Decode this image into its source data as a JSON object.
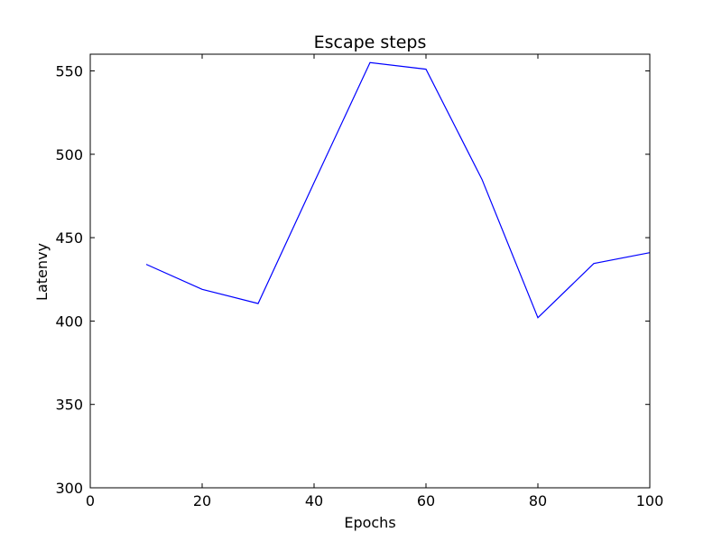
{
  "chart_data": {
    "type": "line",
    "title": "Escape steps",
    "xlabel": "Epochs",
    "ylabel": "Latenvy",
    "xlim": [
      0,
      100
    ],
    "ylim": [
      300,
      560
    ],
    "x_ticks": [
      0,
      20,
      40,
      60,
      80,
      100
    ],
    "y_ticks": [
      300,
      350,
      400,
      450,
      500,
      550
    ],
    "grid": false,
    "series": [
      {
        "color": "#0000ff",
        "x": [
          10,
          20,
          30,
          40,
          50,
          60,
          70,
          80,
          90,
          100
        ],
        "y": [
          434,
          419,
          410.5,
          483,
          555,
          551,
          485,
          402,
          434.5,
          441
        ]
      }
    ]
  }
}
